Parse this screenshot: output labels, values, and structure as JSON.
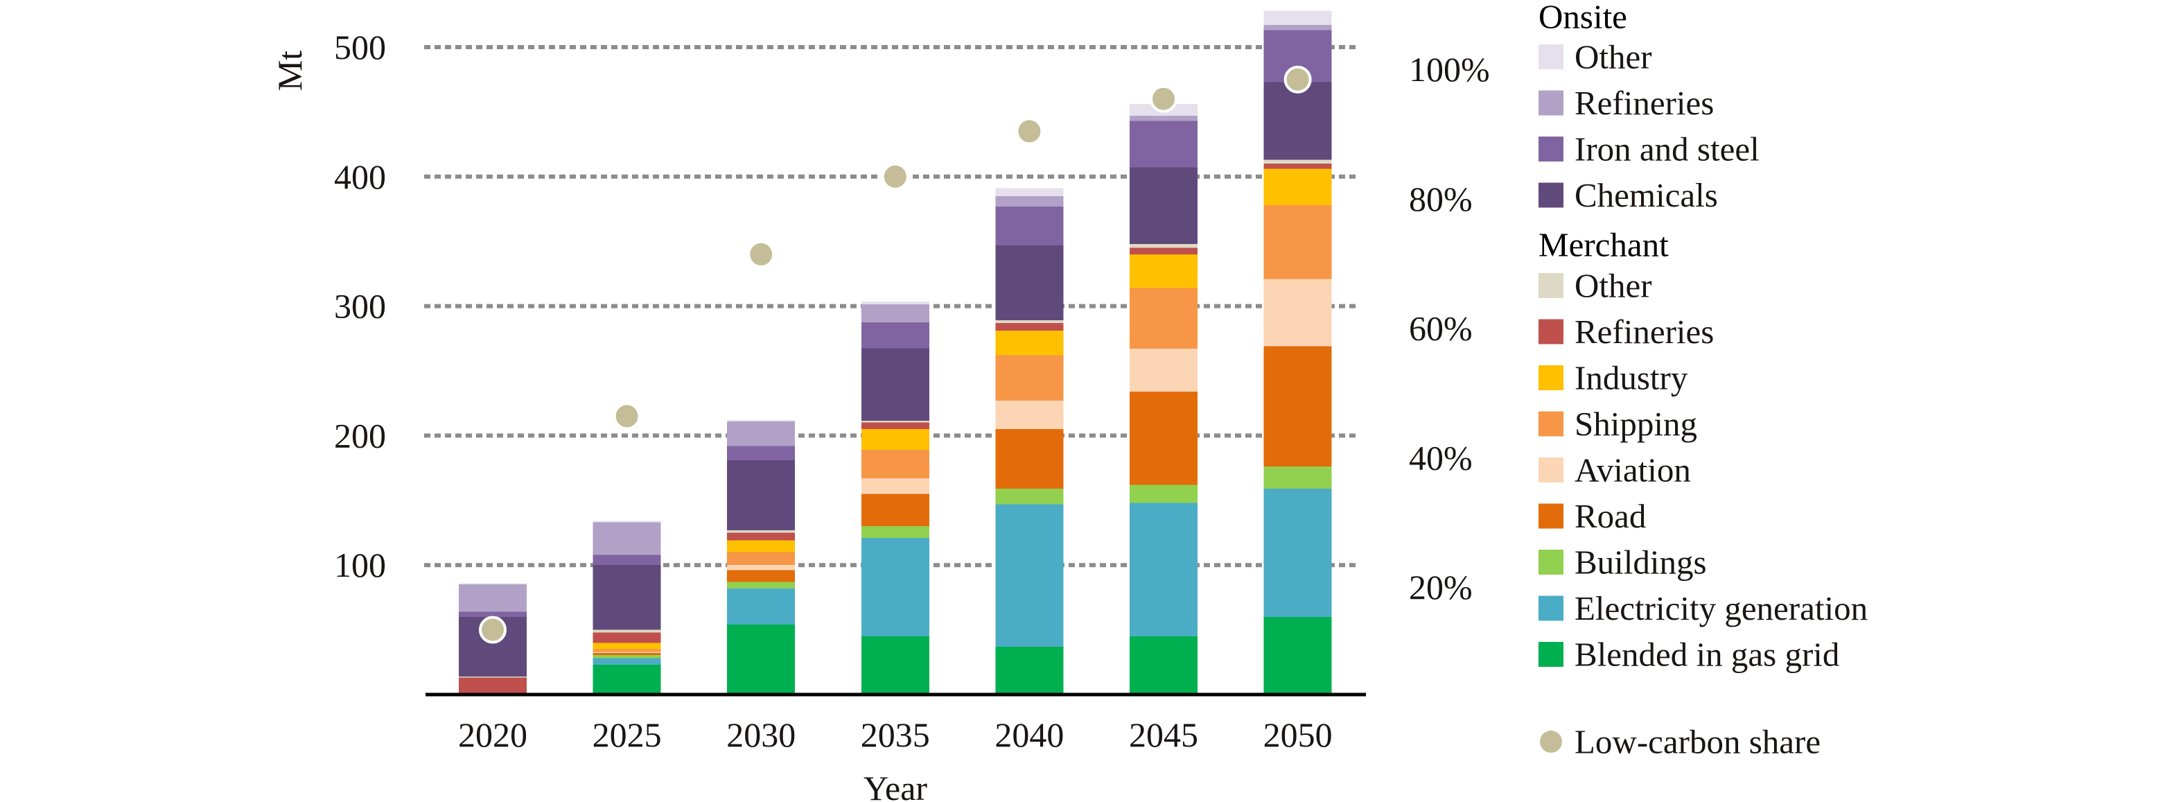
{
  "chart_data": {
    "type": "bar",
    "stacked": true,
    "title": "",
    "xlabel": "Year",
    "ylabel": "Mt",
    "ylim": [
      0,
      500
    ],
    "y_ticks": [
      "100",
      "200",
      "300",
      "400",
      "500"
    ],
    "y2_ticks": [
      "20%",
      "40%",
      "60%",
      "80%",
      "100%"
    ],
    "y2lim": [
      0,
      100
    ],
    "grid": true,
    "legend_position": "right",
    "categories": [
      "2020",
      "2025",
      "2030",
      "2035",
      "2040",
      "2045",
      "2050"
    ],
    "groups": [
      {
        "name": "Onsite",
        "series": [
          "onsite_other",
          "onsite_refineries",
          "onsite_iron_steel",
          "onsite_chemicals"
        ]
      },
      {
        "name": "Merchant",
        "series": [
          "merchant_other",
          "merchant_refineries",
          "industry",
          "shipping",
          "aviation",
          "road",
          "buildings",
          "electricity_generation",
          "blended_gas_grid"
        ]
      }
    ],
    "series": [
      {
        "id": "blended_gas_grid",
        "name": "Blended in gas grid",
        "color": "#00b050",
        "values": [
          0,
          23,
          54,
          45,
          37,
          45,
          60
        ]
      },
      {
        "id": "electricity_generation",
        "name": "Electricity generation",
        "color": "#4bacc6",
        "values": [
          0,
          5,
          28,
          76,
          110,
          103,
          99
        ]
      },
      {
        "id": "buildings",
        "name": "Buildings",
        "color": "#92d050",
        "values": [
          0,
          2.5,
          5,
          9,
          12,
          14,
          17
        ]
      },
      {
        "id": "road",
        "name": "Road",
        "color": "#e36c0a",
        "values": [
          0,
          1.5,
          9,
          25,
          46,
          72,
          93
        ]
      },
      {
        "id": "aviation",
        "name": "Aviation",
        "color": "#fcd5b5",
        "values": [
          0,
          1,
          4,
          12,
          22,
          33,
          52
        ]
      },
      {
        "id": "shipping",
        "name": "Shipping",
        "color": "#f79646",
        "values": [
          0,
          2,
          10,
          22,
          35,
          47,
          57
        ]
      },
      {
        "id": "industry",
        "name": "Industry",
        "color": "#ffc000",
        "values": [
          0,
          5,
          9,
          16,
          19,
          26,
          28
        ]
      },
      {
        "id": "merchant_refineries",
        "name": "Refineries",
        "color": "#c0504d",
        "values": [
          13,
          8,
          6,
          5,
          6,
          5,
          4
        ]
      },
      {
        "id": "merchant_other",
        "name": "Other",
        "color": "#ddd9c4",
        "values": [
          1,
          2,
          2,
          1.5,
          2,
          3,
          3
        ]
      },
      {
        "id": "onsite_chemicals",
        "name": "Chemicals",
        "color": "#604a7b",
        "values": [
          46,
          50,
          54,
          56,
          58,
          59,
          60
        ]
      },
      {
        "id": "onsite_iron_steel",
        "name": "Iron and steel",
        "color": "#8064a2",
        "values": [
          4,
          8,
          11,
          20,
          30,
          36,
          40
        ]
      },
      {
        "id": "onsite_refineries",
        "name": "Refineries",
        "color": "#b2a1c7",
        "values": [
          21,
          25,
          19,
          14,
          8,
          4,
          4
        ]
      },
      {
        "id": "onsite_other",
        "name": "Other",
        "color": "#e5e0ec",
        "values": [
          1,
          1,
          1,
          2,
          6,
          9,
          11
        ]
      }
    ],
    "overlay": {
      "name": "Low-carbon share",
      "type": "scatter",
      "axis": "y2",
      "unit": "%",
      "color": "#c4bd97",
      "values": [
        10,
        43,
        68,
        80,
        87,
        92,
        95
      ]
    }
  },
  "legend": {
    "onsite_header": "Onsite",
    "merchant_header": "Merchant",
    "onsite_items": [
      {
        "label": "Other",
        "color": "#e5e0ec"
      },
      {
        "label": "Refineries",
        "color": "#b2a1c7"
      },
      {
        "label": "Iron and steel",
        "color": "#8064a2"
      },
      {
        "label": "Chemicals",
        "color": "#604a7b"
      }
    ],
    "merchant_items": [
      {
        "label": "Other",
        "color": "#ddd9c4"
      },
      {
        "label": "Refineries",
        "color": "#c0504d"
      },
      {
        "label": "Industry",
        "color": "#ffc000"
      },
      {
        "label": "Shipping",
        "color": "#f79646"
      },
      {
        "label": "Aviation",
        "color": "#fcd5b5"
      },
      {
        "label": "Road",
        "color": "#e36c0a"
      },
      {
        "label": "Buildings",
        "color": "#92d050"
      },
      {
        "label": "Electricity generation",
        "color": "#4bacc6"
      },
      {
        "label": "Blended in gas grid",
        "color": "#00b050"
      }
    ],
    "share_label": "Low-carbon share",
    "share_color": "#c4bd97"
  }
}
